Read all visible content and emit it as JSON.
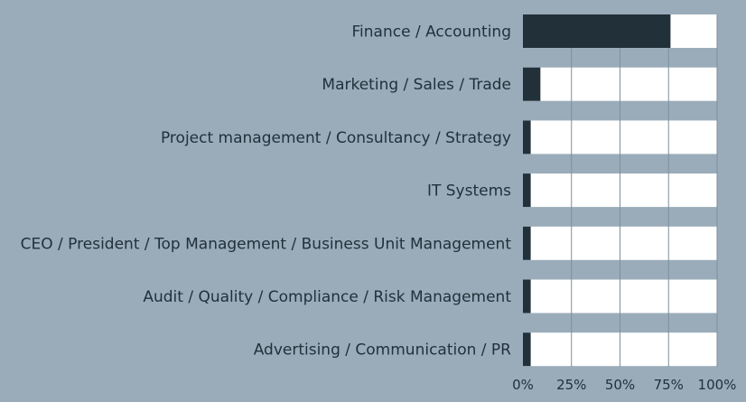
{
  "colors": {
    "background": "#9aacba",
    "track": "#ffffff",
    "bar": "#22303a",
    "text": "#22303a",
    "grid": "#7f8f9b"
  },
  "chart_data": {
    "type": "bar",
    "orientation": "horizontal",
    "stacked_to": 100,
    "categories": [
      "Finance / Accounting",
      "Marketing / Sales / Trade",
      "Project management / Consultancy / Strategy",
      "IT Systems",
      "CEO / President / Top Management / Business Unit Management",
      "Audit / Quality / Compliance / Risk Management",
      "Advertising / Communication / PR"
    ],
    "values": [
      76,
      9,
      4,
      4,
      4,
      4,
      4
    ],
    "xlim": [
      0,
      100
    ],
    "xticks": [
      "0%",
      "25%",
      "50%",
      "75%",
      "100%"
    ],
    "grid": true,
    "legend": "none"
  }
}
